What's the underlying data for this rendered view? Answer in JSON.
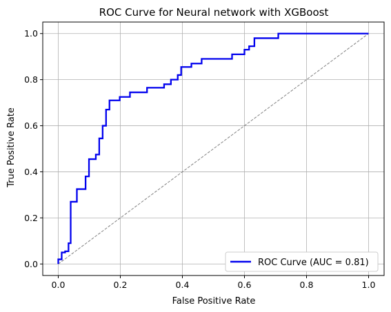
{
  "chart_data": {
    "type": "line",
    "title": "ROC Curve for Neural network with XGBoost",
    "xlabel": "False Positive Rate",
    "ylabel": "True Positive Rate",
    "xlim": [
      -0.05,
      1.05
    ],
    "ylim": [
      -0.05,
      1.05
    ],
    "x_ticks": [
      0.0,
      0.2,
      0.4,
      0.6,
      0.8,
      1.0
    ],
    "y_ticks": [
      0.0,
      0.2,
      0.4,
      0.6,
      0.8,
      1.0
    ],
    "x_tick_labels": [
      "0.0",
      "0.2",
      "0.4",
      "0.6",
      "0.8",
      "1.0"
    ],
    "y_tick_labels": [
      "0.0",
      "0.2",
      "0.4",
      "0.6",
      "0.8",
      "1.0"
    ],
    "grid": true,
    "legend_position": "lower-right",
    "series": [
      {
        "name": "ROC Curve (AUC = 0.81)",
        "color": "#0000ee",
        "style": "solid",
        "x": [
          0.0,
          0.0,
          0.0,
          0.011,
          0.011,
          0.022,
          0.022,
          0.033,
          0.033,
          0.04,
          0.04,
          0.06,
          0.06,
          0.088,
          0.088,
          0.099,
          0.099,
          0.121,
          0.121,
          0.132,
          0.132,
          0.143,
          0.143,
          0.154,
          0.154,
          0.165,
          0.165,
          0.198,
          0.198,
          0.231,
          0.231,
          0.286,
          0.286,
          0.341,
          0.341,
          0.363,
          0.363,
          0.385,
          0.385,
          0.396,
          0.396,
          0.429,
          0.429,
          0.462,
          0.462,
          0.56,
          0.56,
          0.6,
          0.6,
          0.615,
          0.615,
          0.632,
          0.632,
          0.709,
          0.709,
          1.0
        ],
        "y": [
          0.0,
          0.01,
          0.02,
          0.02,
          0.05,
          0.05,
          0.055,
          0.055,
          0.09,
          0.09,
          0.27,
          0.27,
          0.325,
          0.325,
          0.38,
          0.38,
          0.455,
          0.455,
          0.475,
          0.475,
          0.545,
          0.545,
          0.6,
          0.6,
          0.67,
          0.67,
          0.71,
          0.71,
          0.725,
          0.725,
          0.745,
          0.745,
          0.765,
          0.765,
          0.78,
          0.78,
          0.8,
          0.8,
          0.82,
          0.82,
          0.855,
          0.855,
          0.87,
          0.87,
          0.89,
          0.89,
          0.91,
          0.91,
          0.93,
          0.93,
          0.945,
          0.945,
          0.98,
          0.98,
          1.0,
          1.0
        ]
      },
      {
        "name": "",
        "color": "#808080",
        "style": "dashed",
        "x": [
          0.0,
          1.0
        ],
        "y": [
          0.0,
          1.0
        ]
      }
    ]
  }
}
